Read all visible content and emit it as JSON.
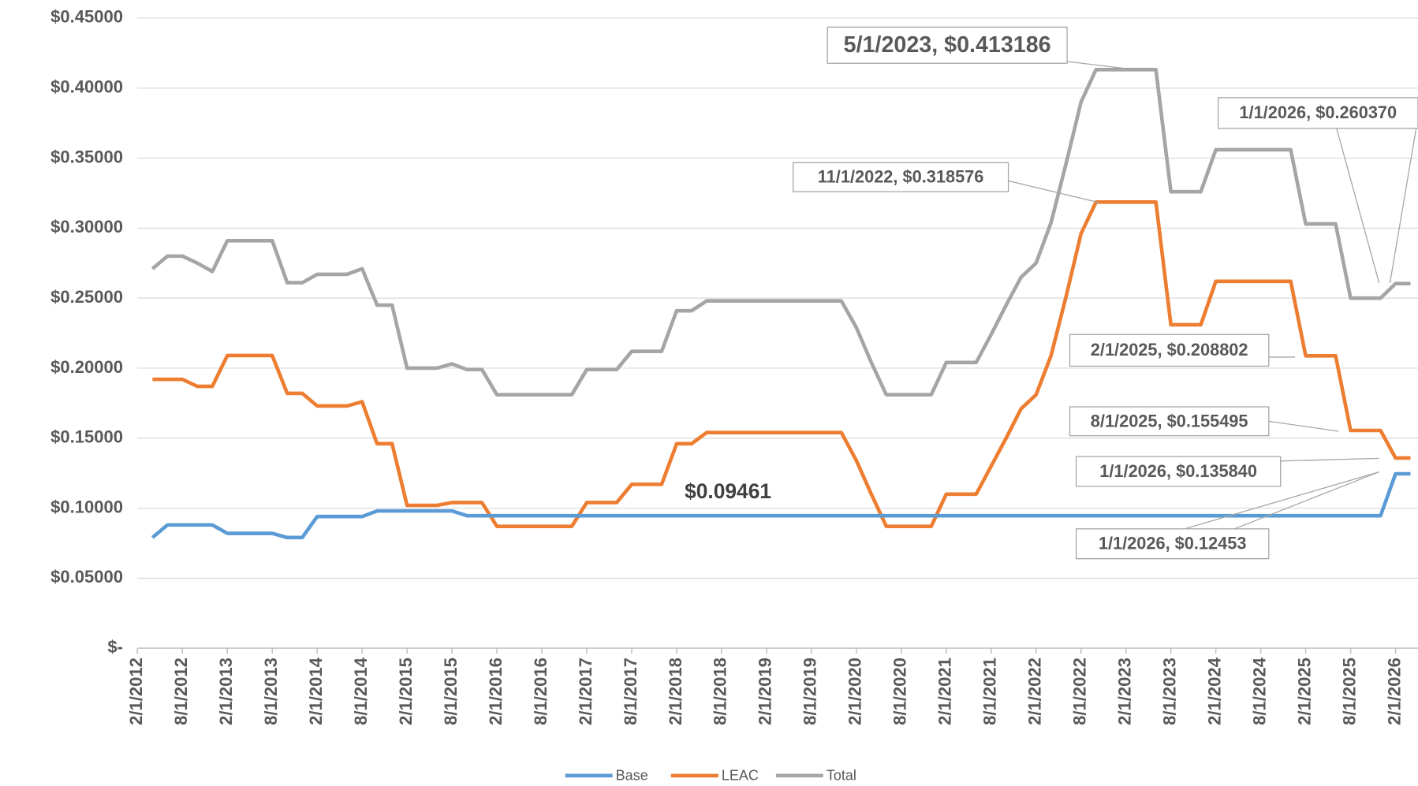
{
  "chart_data": {
    "type": "line",
    "x": [
      "4/1/2012",
      "6/1/2012",
      "8/1/2012",
      "10/1/2012",
      "12/1/2012",
      "2/1/2013",
      "4/1/2013",
      "6/1/2013",
      "8/1/2013",
      "10/1/2013",
      "12/1/2013",
      "2/1/2014",
      "4/1/2014",
      "6/1/2014",
      "8/1/2014",
      "10/1/2014",
      "12/1/2014",
      "2/1/2015",
      "4/1/2015",
      "6/1/2015",
      "8/1/2015",
      "10/1/2015",
      "12/1/2015",
      "2/1/2016",
      "4/1/2016",
      "6/1/2016",
      "8/1/2016",
      "10/1/2016",
      "12/1/2016",
      "2/1/2017",
      "4/1/2017",
      "6/1/2017",
      "8/1/2017",
      "10/1/2017",
      "12/1/2017",
      "2/1/2018",
      "4/1/2018",
      "6/1/2018",
      "8/1/2018",
      "10/1/2018",
      "12/1/2018",
      "2/1/2019",
      "4/1/2019",
      "6/1/2019",
      "8/1/2019",
      "10/1/2019",
      "12/1/2019",
      "2/1/2020",
      "4/1/2020",
      "6/1/2020",
      "8/1/2020",
      "10/1/2020",
      "12/1/2020",
      "2/1/2021",
      "4/1/2021",
      "6/1/2021",
      "8/1/2021",
      "10/1/2021",
      "12/1/2021",
      "2/1/2022",
      "4/1/2022",
      "6/1/2022",
      "8/1/2022",
      "10/1/2022",
      "12/1/2022",
      "2/1/2023",
      "4/1/2023",
      "6/1/2023",
      "8/1/2023",
      "10/1/2023",
      "12/1/2023",
      "2/1/2024",
      "4/1/2024",
      "6/1/2024",
      "8/1/2024",
      "10/1/2024",
      "12/1/2024",
      "2/1/2025",
      "4/1/2025",
      "6/1/2025",
      "8/1/2025",
      "10/1/2025",
      "12/1/2025",
      "2/1/2026",
      "4/1/2026"
    ],
    "series": [
      {
        "name": "Base",
        "color": "#5b9bd5",
        "values": [
          0.079,
          0.088,
          0.088,
          0.088,
          0.088,
          0.082,
          0.082,
          0.082,
          0.082,
          0.079,
          0.079,
          0.094,
          0.094,
          0.094,
          0.094,
          0.098,
          0.098,
          0.098,
          0.098,
          0.098,
          0.098,
          0.09461,
          0.09461,
          0.09461,
          0.09461,
          0.09461,
          0.09461,
          0.09461,
          0.09461,
          0.09461,
          0.09461,
          0.09461,
          0.09461,
          0.09461,
          0.09461,
          0.09461,
          0.09461,
          0.09461,
          0.09461,
          0.09461,
          0.09461,
          0.09461,
          0.09461,
          0.09461,
          0.09461,
          0.09461,
          0.09461,
          0.09461,
          0.09461,
          0.09461,
          0.09461,
          0.09461,
          0.09461,
          0.09461,
          0.09461,
          0.09461,
          0.09461,
          0.09461,
          0.09461,
          0.09461,
          0.09461,
          0.09461,
          0.09461,
          0.09461,
          0.09461,
          0.09461,
          0.09461,
          0.09461,
          0.09461,
          0.09461,
          0.09461,
          0.09461,
          0.09461,
          0.09461,
          0.09461,
          0.09461,
          0.09461,
          0.09461,
          0.09461,
          0.09461,
          0.09461,
          0.09461,
          0.09461,
          0.12453,
          0.12453
        ]
      },
      {
        "name": "LEAC",
        "color": "#ed7d31",
        "values": [
          0.192,
          0.192,
          0.192,
          0.187,
          0.187,
          0.209,
          0.209,
          0.209,
          0.209,
          0.182,
          0.182,
          0.173,
          0.173,
          0.173,
          0.176,
          0.146,
          0.146,
          0.102,
          0.102,
          0.102,
          0.104,
          0.104,
          0.104,
          0.087,
          0.087,
          0.087,
          0.087,
          0.087,
          0.087,
          0.104,
          0.104,
          0.104,
          0.117,
          0.117,
          0.117,
          0.146,
          0.146,
          0.154,
          0.154,
          0.154,
          0.154,
          0.154,
          0.154,
          0.154,
          0.154,
          0.154,
          0.154,
          0.134,
          0.11,
          0.087,
          0.087,
          0.087,
          0.087,
          0.11,
          0.11,
          0.11,
          0.13,
          0.15,
          0.171,
          0.181,
          0.209,
          0.251,
          0.296,
          0.318576,
          0.318576,
          0.318576,
          0.318576,
          0.318576,
          0.231,
          0.231,
          0.231,
          0.262,
          0.262,
          0.262,
          0.262,
          0.262,
          0.262,
          0.208802,
          0.208802,
          0.208802,
          0.155495,
          0.155495,
          0.155495,
          0.13584,
          0.13584
        ]
      },
      {
        "name": "Total",
        "color": "#a5a5a5",
        "values": [
          0.271,
          0.28,
          0.28,
          0.275,
          0.269,
          0.291,
          0.291,
          0.291,
          0.291,
          0.261,
          0.261,
          0.267,
          0.267,
          0.267,
          0.271,
          0.245,
          0.245,
          0.2,
          0.2,
          0.2,
          0.203,
          0.199,
          0.199,
          0.181,
          0.181,
          0.181,
          0.181,
          0.181,
          0.181,
          0.199,
          0.199,
          0.199,
          0.212,
          0.212,
          0.212,
          0.241,
          0.241,
          0.248,
          0.248,
          0.248,
          0.248,
          0.248,
          0.248,
          0.248,
          0.248,
          0.248,
          0.248,
          0.229,
          0.204,
          0.181,
          0.181,
          0.181,
          0.181,
          0.204,
          0.204,
          0.204,
          0.224,
          0.245,
          0.265,
          0.275,
          0.304,
          0.346,
          0.39,
          0.413186,
          0.413186,
          0.413186,
          0.413186,
          0.413186,
          0.326,
          0.326,
          0.326,
          0.356,
          0.356,
          0.356,
          0.356,
          0.356,
          0.356,
          0.303,
          0.303,
          0.303,
          0.25,
          0.25,
          0.25,
          0.26037,
          0.26037
        ]
      }
    ],
    "xlim": [
      "2/1/2012",
      "5/1/2026"
    ],
    "xticks": [
      "2/1/2012",
      "8/1/2012",
      "2/1/2013",
      "8/1/2013",
      "2/1/2014",
      "8/1/2014",
      "2/1/2015",
      "8/1/2015",
      "2/1/2016",
      "8/1/2016",
      "2/1/2017",
      "8/1/2017",
      "2/1/2018",
      "8/1/2018",
      "2/1/2019",
      "8/1/2019",
      "2/1/2020",
      "8/1/2020",
      "2/1/2021",
      "8/1/2021",
      "2/1/2022",
      "8/1/2022",
      "2/1/2023",
      "8/1/2023",
      "2/1/2024",
      "8/1/2024",
      "2/1/2025",
      "8/1/2025",
      "2/1/2026"
    ],
    "ylim": [
      0,
      0.45
    ],
    "yticks": [
      {
        "value": 0,
        "label": "$-"
      },
      {
        "value": 0.05,
        "label": "$0.05000"
      },
      {
        "value": 0.1,
        "label": "$0.10000"
      },
      {
        "value": 0.15,
        "label": "$0.15000"
      },
      {
        "value": 0.2,
        "label": "$0.20000"
      },
      {
        "value": 0.25,
        "label": "$0.25000"
      },
      {
        "value": 0.3,
        "label": "$0.30000"
      },
      {
        "value": 0.35,
        "label": "$0.35000"
      },
      {
        "value": 0.4,
        "label": "$0.40000"
      },
      {
        "value": 0.45,
        "label": "$0.45000"
      }
    ],
    "grid": true,
    "legend": "bottom",
    "annotations": [
      "5/1/2023,  $0.413186",
      "11/1/2022,  $0.318576",
      "1/1/2026,  $0.260370",
      "2/1/2025,  $0.208802",
      "8/1/2025,  $0.155495",
      "1/1/2026,  $0.135840",
      "1/1/2026,  $0.12453",
      "$0.09461"
    ]
  }
}
